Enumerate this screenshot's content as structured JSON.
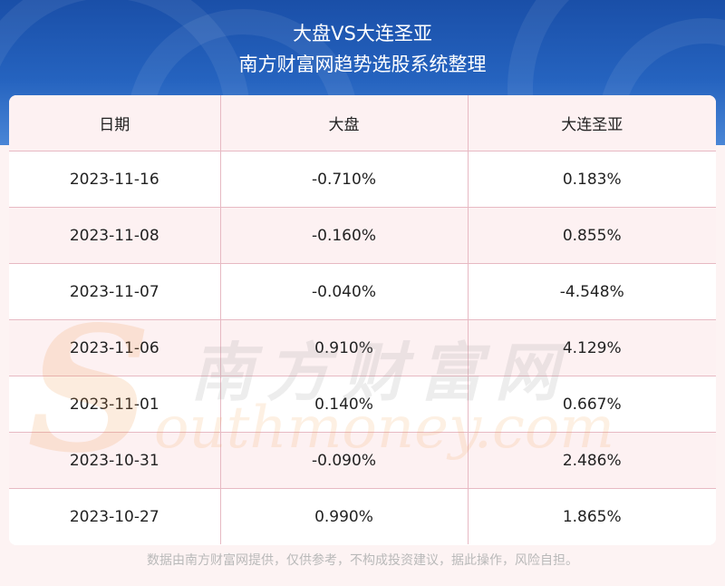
{
  "header": {
    "title": "大盘VS大连圣亚",
    "subtitle": "南方财富网趋势选股系统整理"
  },
  "table": {
    "columns": [
      "日期",
      "大盘",
      "大连圣亚"
    ],
    "rows": [
      [
        "2023-11-16",
        "-0.710%",
        "0.183%"
      ],
      [
        "2023-11-08",
        "-0.160%",
        "0.855%"
      ],
      [
        "2023-11-07",
        "-0.040%",
        "-4.548%"
      ],
      [
        "2023-11-06",
        "0.910%",
        "4.129%"
      ],
      [
        "2023-11-01",
        "0.140%",
        "0.667%"
      ],
      [
        "2023-10-31",
        "-0.090%",
        "2.486%"
      ],
      [
        "2023-10-27",
        "0.990%",
        "1.865%"
      ]
    ]
  },
  "watermark": {
    "cn": "南方财富网",
    "en": "outhmoney.com",
    "logo_letter": "S"
  },
  "footer": {
    "disclaimer": "数据由南方财富网提供，仅供参考，不构成投资建议，据此操作，风险自担。"
  }
}
